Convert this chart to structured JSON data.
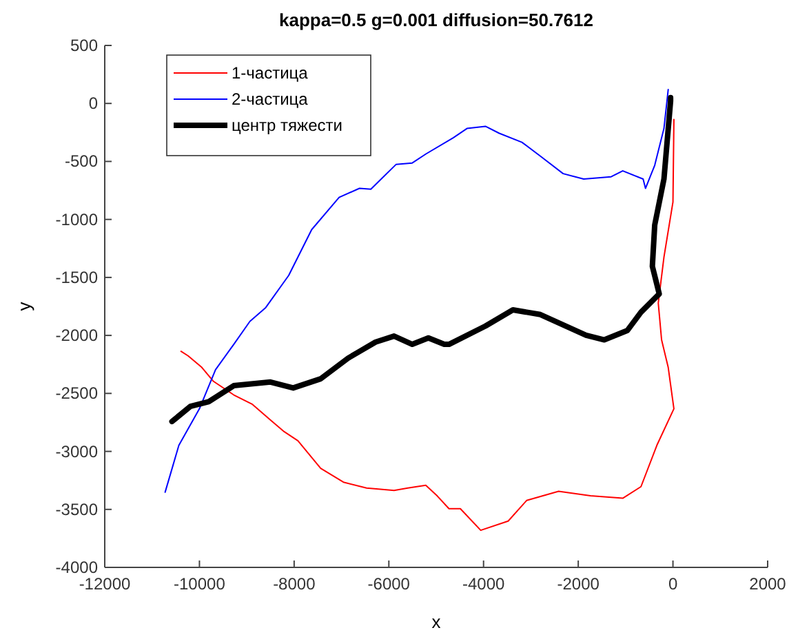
{
  "chart_data": {
    "type": "line",
    "title": "kappa=0.5   g=0.001   diffusion=50.7612",
    "xlabel": "x",
    "ylabel": "y",
    "xlim": [
      -12000,
      2000
    ],
    "xticks": [
      -12000,
      -10000,
      -8000,
      -6000,
      -4000,
      -2000,
      0,
      2000
    ],
    "ylim": [
      -4000,
      500
    ],
    "yticks": [
      -4000,
      -3500,
      -3000,
      -2500,
      -2000,
      -1500,
      -1000,
      -500,
      0,
      500
    ],
    "grid": false,
    "legend": "top left",
    "series": [
      {
        "name": "1-частица",
        "color": "#ff0000",
        "x": [
          -10390,
          -10240,
          -9950,
          -9710,
          -9275,
          -8890,
          -8500,
          -8210,
          -7920,
          -7440,
          -6960,
          -6470,
          -5890,
          -5600,
          -5220,
          -4980,
          -4730,
          -4490,
          -4060,
          -3480,
          -3090,
          -2415,
          -1740,
          -1060,
          -675,
          -340,
          20,
          -100,
          -240,
          -310,
          -190,
          0,
          20
        ],
        "values": [
          -2137,
          -2176,
          -2276,
          -2394,
          -2513,
          -2592,
          -2730,
          -2830,
          -2908,
          -3146,
          -3265,
          -3316,
          -3336,
          -3316,
          -3292,
          -3383,
          -3494,
          -3494,
          -3680,
          -3601,
          -3423,
          -3344,
          -3383,
          -3404,
          -3304,
          -2948,
          -2632,
          -2276,
          -2038,
          -1721,
          -1325,
          -850,
          -138
        ]
      },
      {
        "name": "2-частица",
        "color": "#0000ff",
        "x": [
          -10725,
          -10435,
          -10000,
          -9660,
          -9275,
          -8935,
          -8600,
          -8115,
          -7630,
          -7050,
          -6620,
          -6380,
          -5845,
          -5505,
          -5215,
          -4640,
          -4350,
          -3960,
          -3670,
          -3190,
          -2800,
          -2320,
          -1885,
          -1305,
          -1060,
          -630,
          -580,
          -385,
          -190,
          -100
        ],
        "values": [
          -3352,
          -2948,
          -2632,
          -2295,
          -2077,
          -1879,
          -1760,
          -1483,
          -1088,
          -810,
          -732,
          -739,
          -525,
          -513,
          -435,
          -296,
          -216,
          -197,
          -257,
          -335,
          -454,
          -605,
          -652,
          -632,
          -581,
          -652,
          -732,
          -533,
          -216,
          120
        ]
      },
      {
        "name": "центр тяжести",
        "color": "#000000",
        "x": [
          -10580,
          -10190,
          -9805,
          -9275,
          -8500,
          -8020,
          -7440,
          -6860,
          -6280,
          -5890,
          -5505,
          -5165,
          -4830,
          -4730,
          -3960,
          -3380,
          -2800,
          -1835,
          -1450,
          -965,
          -675,
          -290,
          -435,
          -385,
          -190,
          -50,
          -50
        ],
        "values": [
          -2742,
          -2612,
          -2572,
          -2433,
          -2402,
          -2453,
          -2374,
          -2196,
          -2057,
          -2006,
          -2077,
          -2022,
          -2077,
          -2077,
          -1919,
          -1780,
          -1820,
          -1998,
          -2038,
          -1958,
          -1800,
          -1642,
          -1404,
          -1048,
          -652,
          21,
          50
        ]
      }
    ]
  }
}
